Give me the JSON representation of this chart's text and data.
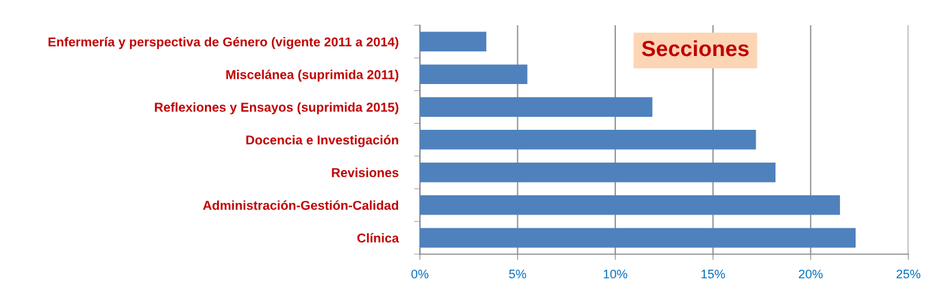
{
  "chart_data": {
    "type": "bar",
    "orientation": "horizontal",
    "title": "Secciones",
    "categories": [
      "Enfermería y perspectiva de Género (vigente 2011 a 2014)",
      "Miscelánea (suprimida 2011)",
      "Reflexiones y Ensayos (suprimida 2015)",
      "Docencia e Investigación",
      "Revisiones",
      "Administración-Gestión-Calidad",
      "Clínica"
    ],
    "values": [
      3.4,
      5.5,
      11.9,
      17.2,
      18.2,
      21.5,
      22.3
    ],
    "color": "#4f81bd",
    "xlim": [
      0,
      25
    ],
    "xticks": [
      {
        "value": 0,
        "label": "0%"
      },
      {
        "value": 5,
        "label": "5%"
      },
      {
        "value": 10,
        "label": "10%"
      },
      {
        "value": 15,
        "label": "15%"
      },
      {
        "value": 20,
        "label": "20%"
      },
      {
        "value": 25,
        "label": "25%"
      }
    ],
    "grid": "x",
    "legend": false
  }
}
